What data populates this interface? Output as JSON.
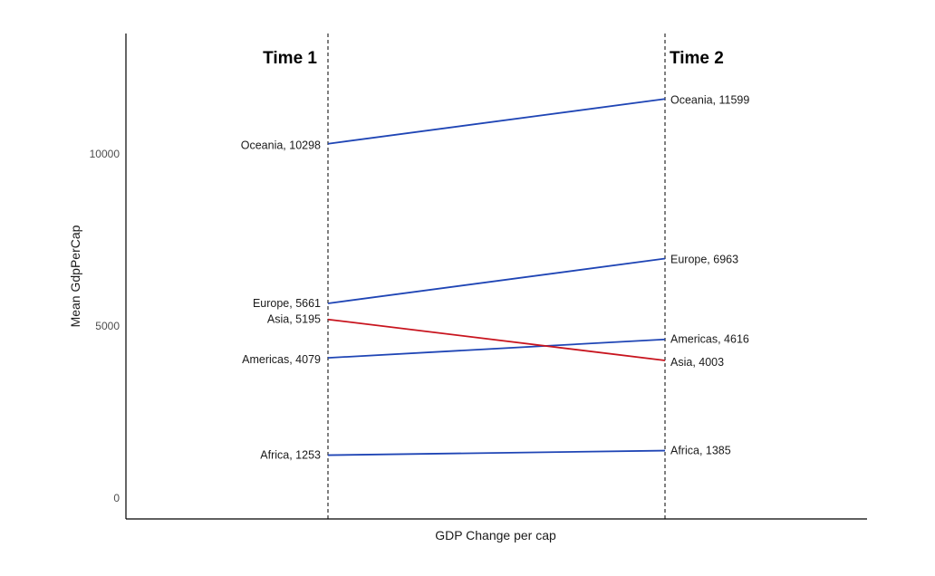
{
  "chart_data": {
    "type": "slope",
    "xlabel": "GDP Change per cap",
    "ylabel": "Mean GdpPerCap",
    "time_labels": [
      "Time 1",
      "Time 2"
    ],
    "yticks": [
      0,
      5000,
      10000
    ],
    "ylim": [
      -600,
      13500
    ],
    "series": [
      {
        "name": "Africa",
        "values": [
          1253,
          1385
        ],
        "color": "#1f45b5",
        "label_t1": "Africa, 1253",
        "label_t2": "Africa, 1385"
      },
      {
        "name": "Americas",
        "values": [
          4079,
          4616
        ],
        "color": "#1f45b5",
        "label_t1": "Americas, 4079",
        "label_t2": "Americas, 4616"
      },
      {
        "name": "Asia",
        "values": [
          5195,
          4003
        ],
        "color": "#c8141e",
        "label_t1": "Asia, 5195",
        "label_t2": "Asia, 4003"
      },
      {
        "name": "Europe",
        "values": [
          5661,
          6963
        ],
        "color": "#1f45b5",
        "label_t1": "Europe, 5661",
        "label_t2": "Europe, 6963"
      },
      {
        "name": "Oceania",
        "values": [
          10298,
          11599
        ],
        "color": "#1f45b5",
        "label_t1": "Oceania, 10298",
        "label_t2": "Oceania, 11599"
      }
    ]
  }
}
